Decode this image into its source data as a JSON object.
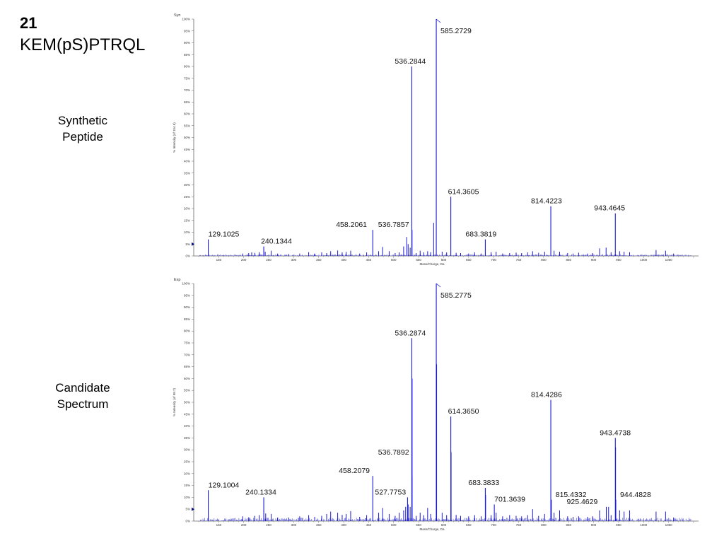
{
  "header": {
    "number": "21",
    "peptide": "KEM(pS)PTRQL"
  },
  "panels": [
    {
      "side_label_line1": "Synthetic",
      "side_label_line2": "Peptide"
    },
    {
      "side_label_line1": "Candidate",
      "side_label_line2": "Spectrum"
    }
  ],
  "chart_data": [
    {
      "type": "bar",
      "corner_label": "Syn",
      "xlabel": "Mass/Charge, Da",
      "ylabel": "% Intensity (of 154.9)",
      "xlim": [
        100,
        1110
      ],
      "ylim": [
        0,
        100
      ],
      "xticks": [
        150,
        200,
        250,
        300,
        350,
        400,
        450,
        500,
        550,
        600,
        650,
        700,
        750,
        800,
        850,
        900,
        950,
        1000,
        1050
      ],
      "yticks": [
        0,
        5,
        10,
        15,
        20,
        25,
        30,
        35,
        40,
        45,
        50,
        55,
        60,
        65,
        70,
        75,
        80,
        85,
        90,
        95,
        100
      ],
      "marker_y": 5,
      "labeled_peaks": [
        {
          "mz": 129.1025,
          "intensity": 7,
          "label": "129.1025"
        },
        {
          "mz": 240.1344,
          "intensity": 4,
          "label": "240.1344"
        },
        {
          "mz": 458.2061,
          "intensity": 11,
          "label": "458.2061"
        },
        {
          "mz": 536.7857,
          "intensity": 11,
          "label": "536.7857"
        },
        {
          "mz": 536.2844,
          "intensity": 80,
          "label": "536.2844"
        },
        {
          "mz": 585.2729,
          "intensity": 100,
          "label": "585.2729"
        },
        {
          "mz": 614.3605,
          "intensity": 25,
          "label": "614.3605"
        },
        {
          "mz": 683.3819,
          "intensity": 7,
          "label": "683.3819"
        },
        {
          "mz": 814.4223,
          "intensity": 21,
          "label": "814.4223"
        },
        {
          "mz": 943.4645,
          "intensity": 18,
          "label": "943.4645"
        }
      ],
      "other_peaks": [
        [
          198,
          1
        ],
        [
          210,
          1.2
        ],
        [
          216,
          1.5
        ],
        [
          222,
          1.3
        ],
        [
          231,
          1.6
        ],
        [
          243,
          1.8
        ],
        [
          255,
          2.2
        ],
        [
          268,
          1
        ],
        [
          290,
          0.8
        ],
        [
          312,
          1
        ],
        [
          330,
          1.6
        ],
        [
          342,
          1
        ],
        [
          356,
          1.5
        ],
        [
          366,
          1.2
        ],
        [
          374,
          2
        ],
        [
          388,
          2.3
        ],
        [
          397,
          1.5
        ],
        [
          405,
          1.7
        ],
        [
          414,
          2.2
        ],
        [
          432,
          1
        ],
        [
          446,
          1.5
        ],
        [
          470,
          2
        ],
        [
          478,
          3.8
        ],
        [
          491,
          2
        ],
        [
          503,
          1.2
        ],
        [
          511,
          1.5
        ],
        [
          520,
          4
        ],
        [
          526,
          8
        ],
        [
          529,
          5
        ],
        [
          533,
          3.5
        ],
        [
          545,
          1.2
        ],
        [
          553,
          2.2
        ],
        [
          560,
          1.5
        ],
        [
          568,
          2
        ],
        [
          574,
          1.6
        ],
        [
          580,
          14
        ],
        [
          597,
          1.8
        ],
        [
          606,
          1.5
        ],
        [
          625,
          1.3
        ],
        [
          634,
          1.2
        ],
        [
          650,
          1
        ],
        [
          662,
          1.5
        ],
        [
          675,
          1
        ],
        [
          695,
          1.6
        ],
        [
          705,
          1.8
        ],
        [
          718,
          1
        ],
        [
          732,
          1.2
        ],
        [
          745,
          1.4
        ],
        [
          756,
          1.2
        ],
        [
          768,
          1.5
        ],
        [
          778,
          2
        ],
        [
          790,
          1.3
        ],
        [
          802,
          1.8
        ],
        [
          821,
          2.2
        ],
        [
          832,
          1.8
        ],
        [
          848,
          1.2
        ],
        [
          859,
          1
        ],
        [
          870,
          1.4
        ],
        [
          888,
          1
        ],
        [
          898,
          1.2
        ],
        [
          912,
          3.2
        ],
        [
          925,
          3.5
        ],
        [
          935,
          1.5
        ],
        [
          952,
          2
        ],
        [
          961,
          1.8
        ],
        [
          972,
          1.6
        ],
        [
          1025,
          2.5
        ],
        [
          1044,
          2.2
        ],
        [
          1060,
          1
        ]
      ]
    },
    {
      "type": "bar",
      "corner_label": "Exp",
      "xlabel": "Mass/Charge, Da",
      "ylabel": "% Intensity (of 98.7)",
      "xlim": [
        100,
        1110
      ],
      "ylim": [
        0,
        100
      ],
      "xticks": [
        150,
        200,
        250,
        300,
        350,
        400,
        450,
        500,
        550,
        600,
        650,
        700,
        750,
        800,
        850,
        900,
        950,
        1000,
        1050
      ],
      "yticks": [
        0,
        5,
        10,
        15,
        20,
        25,
        30,
        35,
        40,
        45,
        50,
        55,
        60,
        65,
        70,
        75,
        80,
        85,
        90,
        95,
        100
      ],
      "marker_y": 5,
      "labeled_peaks": [
        {
          "mz": 129.1004,
          "intensity": 13,
          "label": "129.1004"
        },
        {
          "mz": 240.1334,
          "intensity": 10,
          "label": "240.1334"
        },
        {
          "mz": 458.2079,
          "intensity": 19,
          "label": "458.2079"
        },
        {
          "mz": 527.7753,
          "intensity": 10,
          "label": "527.7753"
        },
        {
          "mz": 536.7892,
          "intensity": 19,
          "label": "536.7892"
        },
        {
          "mz": 536.2874,
          "intensity": 77,
          "label": "536.2874"
        },
        {
          "mz": 585.2775,
          "intensity": 100,
          "label": "585.2775"
        },
        {
          "mz": 614.365,
          "intensity": 44,
          "label": "614.3650"
        },
        {
          "mz": 683.3833,
          "intensity": 14,
          "label": "683.3833"
        },
        {
          "mz": 701.3639,
          "intensity": 7,
          "label": "701.3639"
        },
        {
          "mz": 814.4286,
          "intensity": 51,
          "label": "814.4286"
        },
        {
          "mz": 815.4332,
          "intensity": 9,
          "label": "815.4332"
        },
        {
          "mz": 925.4629,
          "intensity": 6,
          "label": "925.4629"
        },
        {
          "mz": 943.4738,
          "intensity": 35,
          "label": "943.4738"
        },
        {
          "mz": 944.4828,
          "intensity": 9,
          "label": "944.4828"
        }
      ],
      "other_peaks": [
        [
          198,
          2
        ],
        [
          210,
          1.6
        ],
        [
          222,
          2.2
        ],
        [
          231,
          2.5
        ],
        [
          244,
          3.2
        ],
        [
          255,
          3
        ],
        [
          268,
          1.5
        ],
        [
          290,
          1.5
        ],
        [
          312,
          2
        ],
        [
          330,
          2.5
        ],
        [
          342,
          1.8
        ],
        [
          356,
          2.2
        ],
        [
          366,
          3
        ],
        [
          374,
          4
        ],
        [
          388,
          3.5
        ],
        [
          397,
          2.6
        ],
        [
          405,
          3
        ],
        [
          414,
          4.2
        ],
        [
          432,
          1.8
        ],
        [
          446,
          2.5
        ],
        [
          470,
          3.5
        ],
        [
          478,
          5.5
        ],
        [
          491,
          3
        ],
        [
          503,
          2.2
        ],
        [
          511,
          3.5
        ],
        [
          520,
          4.5
        ],
        [
          524,
          6
        ],
        [
          529,
          7
        ],
        [
          533,
          6
        ],
        [
          537,
          60
        ],
        [
          545,
          2.2
        ],
        [
          553,
          3.5
        ],
        [
          560,
          2.5
        ],
        [
          568,
          5.5
        ],
        [
          574,
          3
        ],
        [
          586,
          66
        ],
        [
          597,
          3.5
        ],
        [
          606,
          2.5
        ],
        [
          615,
          29
        ],
        [
          625,
          2.6
        ],
        [
          634,
          2.2
        ],
        [
          650,
          2
        ],
        [
          662,
          2.5
        ],
        [
          675,
          2
        ],
        [
          684,
          11
        ],
        [
          695,
          2.5
        ],
        [
          705,
          3.5
        ],
        [
          718,
          2
        ],
        [
          732,
          2.5
        ],
        [
          745,
          2.2
        ],
        [
          756,
          2
        ],
        [
          768,
          2.5
        ],
        [
          778,
          5
        ],
        [
          790,
          2.2
        ],
        [
          802,
          3
        ],
        [
          821,
          3.5
        ],
        [
          832,
          4.5
        ],
        [
          848,
          2
        ],
        [
          859,
          1.8
        ],
        [
          870,
          2
        ],
        [
          888,
          1.8
        ],
        [
          898,
          2
        ],
        [
          912,
          4.5
        ],
        [
          930,
          6
        ],
        [
          935,
          2.5
        ],
        [
          944,
          31
        ],
        [
          952,
          4.5
        ],
        [
          961,
          4
        ],
        [
          972,
          4.5
        ],
        [
          1025,
          4
        ],
        [
          1044,
          4
        ],
        [
          1060,
          1.5
        ]
      ]
    }
  ]
}
